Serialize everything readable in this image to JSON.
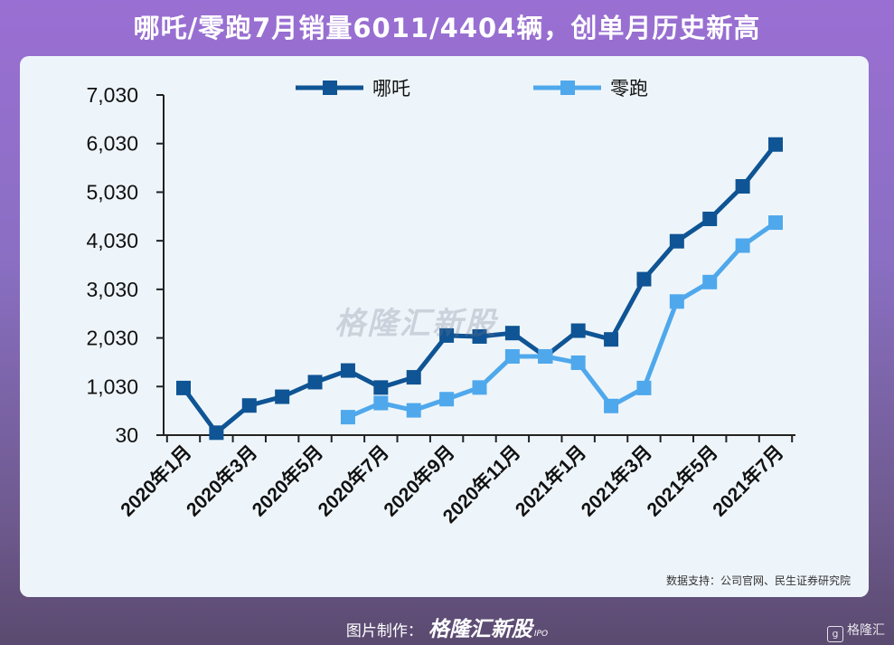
{
  "headline": "哪吒/零跑7月销量6011/4404辆，创单月历史新高",
  "source_note": "数据支持：公司官网、民生证券研究院",
  "footer": {
    "made_by": "图片制作：",
    "brand": "格隆汇新股",
    "ipo": "IPO"
  },
  "corner_logo": "格隆汇",
  "watermark": "格隆汇新股",
  "colors": {
    "nezha": "#0f5494",
    "leapmotor": "#4fa8ec",
    "axis": "#222222"
  },
  "chart_data": {
    "type": "line",
    "x_tick_labels": [
      "2020年1月",
      "2020年3月",
      "2020年5月",
      "2020年7月",
      "2020年9月",
      "2020年11月",
      "2021年1月",
      "2021年3月",
      "2021年5月",
      "2021年7月"
    ],
    "x": [
      "2020-01",
      "2020-02",
      "2020-03",
      "2020-04",
      "2020-05",
      "2020-06",
      "2020-07",
      "2020-08",
      "2020-09",
      "2020-10",
      "2020-11",
      "2020-12",
      "2021-01",
      "2021-02",
      "2021-03",
      "2021-04",
      "2021-05",
      "2021-06",
      "2021-07"
    ],
    "y_ticks": [
      "30",
      "1,030",
      "2,030",
      "3,030",
      "4,030",
      "5,030",
      "6,030",
      "7,030"
    ],
    "ylim": [
      30,
      7030
    ],
    "series": [
      {
        "name": "哪吒",
        "values": [
          1000,
          80,
          640,
          820,
          1120,
          1360,
          1010,
          1220,
          2080,
          2060,
          2130,
          1650,
          2180,
          2000,
          3240,
          4020,
          4480,
          5150,
          6011
        ]
      },
      {
        "name": "零跑",
        "values": [
          null,
          null,
          null,
          null,
          null,
          400,
          690,
          540,
          770,
          1010,
          1650,
          1650,
          1520,
          630,
          1000,
          2780,
          3180,
          3930,
          4404
        ]
      }
    ],
    "legend_position": "top",
    "grid": false
  }
}
